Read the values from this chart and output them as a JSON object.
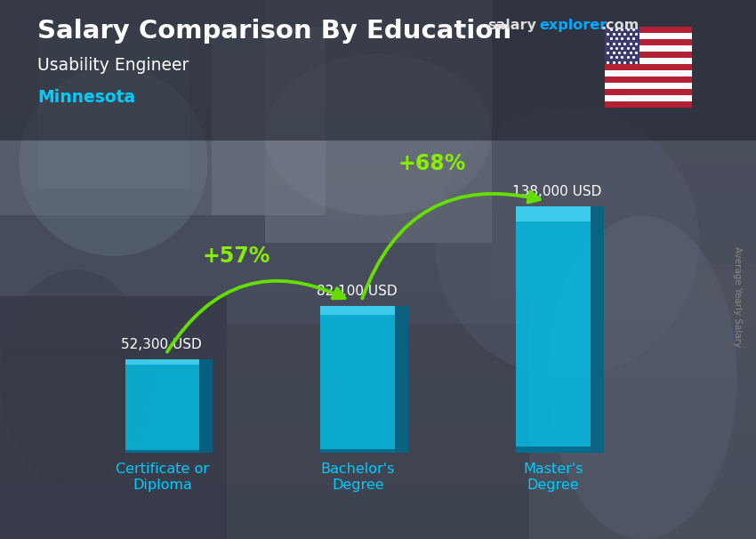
{
  "title": "Salary Comparison By Education",
  "subtitle": "Usability Engineer",
  "location": "Minnesota",
  "watermark_salary": "salary",
  "watermark_explorer": "explorer",
  "watermark_com": ".com",
  "ylabel": "Average Yearly Salary",
  "categories": [
    "Certificate or\nDiploma",
    "Bachelor's\nDegree",
    "Master's\nDegree"
  ],
  "values": [
    52300,
    82100,
    138000
  ],
  "value_labels": [
    "52,300 USD",
    "82,100 USD",
    "138,000 USD"
  ],
  "pct_labels": [
    "+57%",
    "+68%"
  ],
  "bar_color_main": "#00c0e8",
  "bar_color_light": "#40d8f8",
  "bar_color_dark": "#0088b0",
  "bar_color_right": "#006688",
  "bar_width": 0.38,
  "bg_dark": "#2a2e3a",
  "bg_medium": "#3a4050",
  "title_color": "#ffffff",
  "subtitle_color": "#ffffff",
  "location_color": "#00ccff",
  "value_label_color": "#ffffff",
  "pct_color": "#88ee00",
  "arrow_color": "#66dd00",
  "xlabel_color": "#00ccff",
  "watermark_color_white": "#dddddd",
  "watermark_color_cyan": "#00aaff",
  "right_label_color": "#888888",
  "ylim": [
    0,
    175000
  ],
  "figsize": [
    8.5,
    6.06
  ],
  "dpi": 100
}
